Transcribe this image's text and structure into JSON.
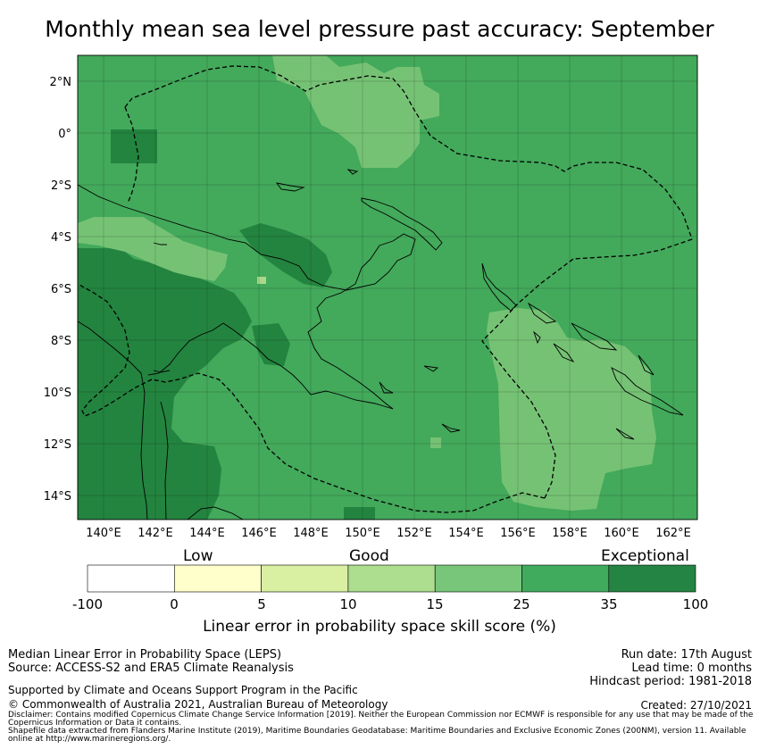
{
  "title": "Monthly mean sea level pressure past accuracy: September",
  "map": {
    "lat_ticks": [
      "2°N",
      "0°",
      "2°S",
      "4°S",
      "6°S",
      "8°S",
      "10°S",
      "12°S",
      "14°S"
    ],
    "lon_ticks": [
      "140°E",
      "142°E",
      "144°E",
      "146°E",
      "148°E",
      "150°E",
      "152°E",
      "154°E",
      "156°E",
      "158°E",
      "160°E",
      "162°E"
    ],
    "colors": {
      "base": "#43a95b",
      "dark": "#23843f",
      "light": "#76c275",
      "lighter": "#aad88a",
      "coastline": "#000000",
      "eez_boundary": "#000000"
    }
  },
  "colorbar": {
    "categories": {
      "low": "Low",
      "good": "Good",
      "exceptional": "Exceptional"
    },
    "ticks": [
      "-100",
      "0",
      "5",
      "10",
      "15",
      "25",
      "35",
      "100"
    ],
    "colors": [
      "#ffffff",
      "#ffffcc",
      "#d9f0a3",
      "#addd8e",
      "#78c679",
      "#41ab5d",
      "#238443"
    ],
    "label": "Linear error in probability space skill score (%)"
  },
  "footer": {
    "method": "Median Linear Error in Probability Space (LEPS)",
    "source": "Source: ACCESS-S2 and ERA5 Climate Reanalysis",
    "run_date": "Run date: 17th August",
    "lead_time": "Lead time: 0 months",
    "hindcast": "Hindcast period: 1981-2018",
    "support": "Supported by Climate and Oceans Support Program in the Pacific",
    "copyright": "© Commonwealth of Australia 2021, Australian Bureau of Meteorology",
    "created": "Created: 27/10/2021",
    "disclaimer": "Disclaimer: Contains modified Copernicus Climate Change Service Information [2019]. Neither the European Commission nor ECMWF is responsible for any use that may be made of the Copernicus Information or Data it contains.",
    "shapefile": "Shapefile data extracted from Flanders Marine Institute (2019), Maritime Boundaries Geodatabase: Maritime Boundaries and Exclusive Economic Zones (200NM), version 11. Available online at http://www.marineregions.org/."
  }
}
